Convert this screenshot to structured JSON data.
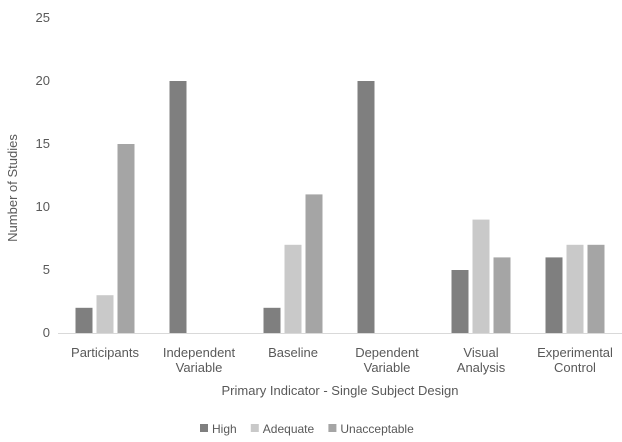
{
  "chart_data": {
    "type": "bar",
    "title": "",
    "xlabel": "Primary Indicator - Single Subject Design",
    "ylabel": "Number of Studies",
    "ylim": [
      0,
      25
    ],
    "yticks": [
      "0",
      "5",
      "10",
      "15",
      "20",
      "25"
    ],
    "grid": false,
    "legend": "bottom",
    "categories": [
      [
        "Participants"
      ],
      [
        "Independent",
        "Variable"
      ],
      [
        "Baseline"
      ],
      [
        "Dependent",
        "Variable"
      ],
      [
        "Visual",
        "Analysis"
      ],
      [
        "Experimental",
        "Control"
      ]
    ],
    "series": [
      {
        "name": "High",
        "color": "#7f7f7f",
        "values": [
          2,
          20,
          2,
          20,
          5,
          6
        ]
      },
      {
        "name": "Adequate",
        "color": "#c9c9c9",
        "values": [
          3,
          0,
          7,
          0,
          9,
          7
        ]
      },
      {
        "name": "Unacceptable",
        "color": "#a5a5a5",
        "values": [
          15,
          0,
          11,
          0,
          6,
          7
        ]
      }
    ]
  }
}
